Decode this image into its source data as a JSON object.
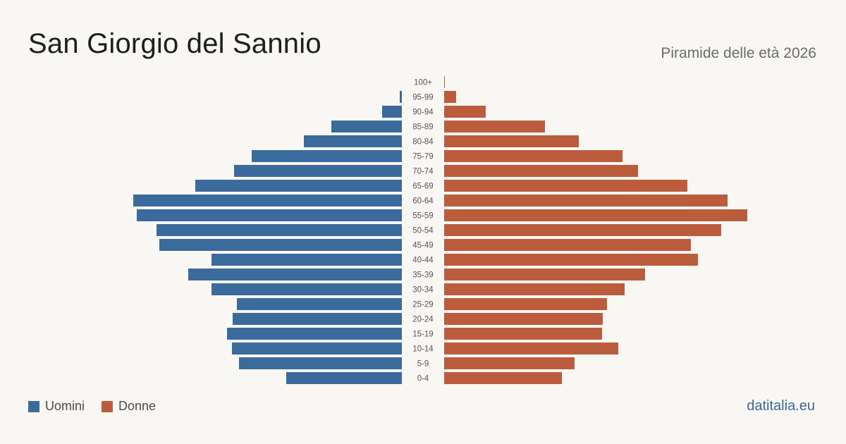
{
  "header": {
    "title": "San Giorgio del Sannio",
    "subtitle": "Piramide delle età 2026"
  },
  "legend": {
    "men_label": "Uomini",
    "women_label": "Donne",
    "men_color": "#3b6a9c",
    "women_color": "#bb5d3c"
  },
  "footer": {
    "source": "datitalia.eu"
  },
  "chart_data": {
    "type": "bar",
    "orientation": "horizontal-pyramid",
    "categories": [
      "100+",
      "95-99",
      "90-94",
      "85-89",
      "80-84",
      "75-79",
      "70-74",
      "65-69",
      "60-64",
      "55-59",
      "50-54",
      "45-49",
      "40-44",
      "35-39",
      "30-34",
      "25-29",
      "20-24",
      "15-19",
      "10-14",
      "5-9",
      "0-4"
    ],
    "series": [
      {
        "name": "Uomini",
        "color": "#3b6a9c",
        "values": [
          0,
          3,
          28,
          100,
          139,
          213,
          238,
          293,
          381,
          376,
          348,
          344,
          270,
          303,
          270,
          234,
          240,
          248,
          241,
          231,
          164
        ]
      },
      {
        "name": "Donne",
        "color": "#bb5d3c",
        "values": [
          1,
          17,
          59,
          143,
          191,
          253,
          275,
          345,
          402,
          430,
          393,
          350,
          360,
          285,
          256,
          231,
          225,
          224,
          247,
          185,
          167
        ]
      }
    ],
    "xlim": [
      0,
      440
    ],
    "grid": false,
    "legend_position": "bottom-left"
  }
}
